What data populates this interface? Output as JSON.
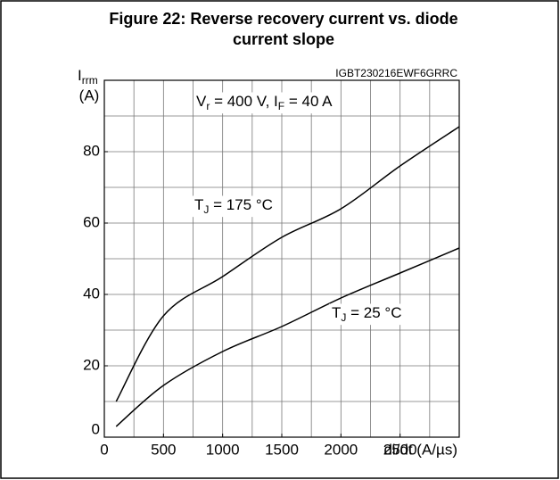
{
  "chart_data": {
    "type": "line",
    "title_lines": [
      "Figure 22: Reverse recovery current vs. diode",
      "current slope"
    ],
    "watermark": "IGBT230216EWF6GRRC",
    "ylabel": [
      {
        "text": "I"
      },
      {
        "text": "rrm",
        "sub": true
      }
    ],
    "ylabel_unit": "(A)",
    "xlabel": "di/dt (A/µs)",
    "xlim": [
      0,
      3000
    ],
    "ylim": [
      0,
      100
    ],
    "xticks": [
      0,
      500,
      1000,
      1500,
      2000,
      2500
    ],
    "yticks": [
      0,
      20,
      40,
      60,
      80
    ],
    "xgrid": [
      250,
      500,
      750,
      1000,
      1250,
      1500,
      1750,
      2000,
      2250,
      2500,
      2750
    ],
    "ygrid": [
      10,
      20,
      30,
      40,
      50,
      60,
      70,
      80,
      90
    ],
    "grid": true,
    "x": [
      100,
      500,
      1000,
      1500,
      2000,
      2500,
      3000
    ],
    "series": [
      {
        "color": "#000000",
        "values": [
          10,
          34,
          45,
          56,
          64,
          76,
          87
        ]
      },
      {
        "color": "#000000",
        "values": [
          3,
          14.5,
          24,
          31,
          39,
          46,
          53
        ]
      }
    ],
    "annotations": [
      {
        "parts": [
          {
            "text": "V"
          },
          {
            "text": "r",
            "sub": true
          },
          {
            "text": " = 400 V, I"
          },
          {
            "text": "F",
            "sub": true
          },
          {
            "text": " = 40 A"
          }
        ]
      },
      {
        "parts": [
          {
            "text": "T"
          },
          {
            "text": "J",
            "sub": true
          },
          {
            "text": " = 175 °C"
          }
        ]
      },
      {
        "parts": [
          {
            "text": "T"
          },
          {
            "text": "J",
            "sub": true
          },
          {
            "text": " = 25 °C"
          }
        ]
      }
    ]
  }
}
